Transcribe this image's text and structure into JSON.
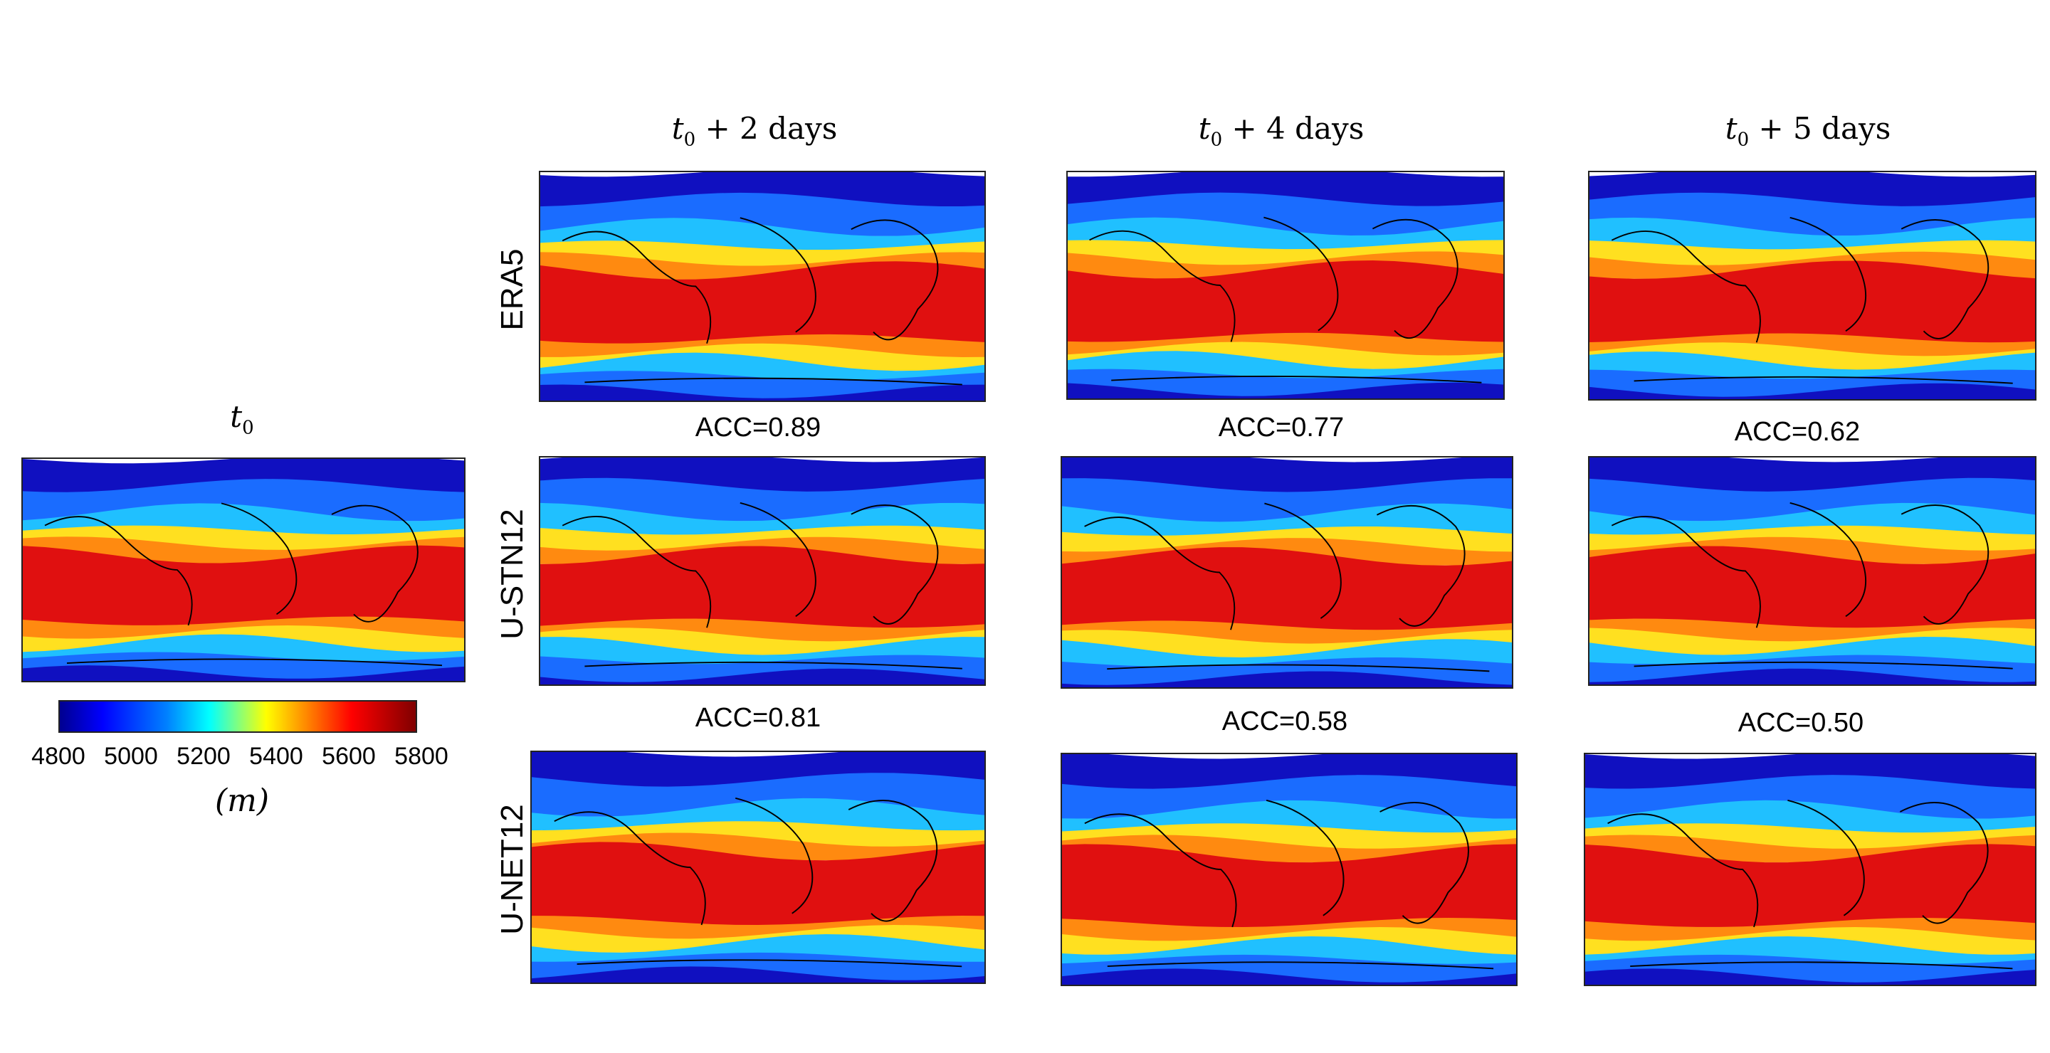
{
  "column_titles": [
    {
      "base": "t",
      "sub": "0",
      "suffix": ""
    },
    {
      "base": "t",
      "sub": "0",
      "suffix": " + 2  days"
    },
    {
      "base": "t",
      "sub": "0",
      "suffix": " + 4  days"
    },
    {
      "base": "t",
      "sub": "0",
      "suffix": " + 5  days"
    }
  ],
  "row_labels": [
    "ERA5",
    "U-STN12",
    "U-NET12"
  ],
  "acc": {
    "ustn": [
      "ACC=0.89",
      "ACC=0.77",
      "ACC=0.62"
    ],
    "unet": [
      "ACC=0.81",
      "ACC=0.58",
      "ACC=0.50"
    ]
  },
  "colorbar": {
    "ticks": [
      "4800",
      "5000",
      "5200",
      "5400",
      "5600",
      "5800"
    ],
    "unit": "(m)",
    "range": [
      4800,
      5800
    ],
    "colormap": "jet"
  },
  "colors": {
    "low": "#00008f",
    "mid": "#ffff00",
    "high": "#800000",
    "tropics": "#e01010"
  }
}
